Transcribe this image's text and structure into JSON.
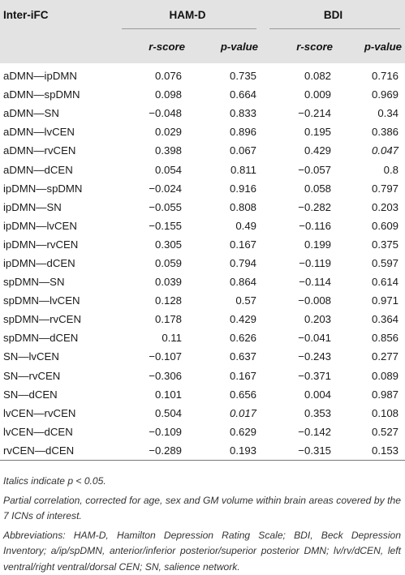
{
  "header": {
    "corner": "Inter-iFC",
    "groups": [
      "HAM-D",
      "BDI"
    ],
    "subheaders": [
      "r-score",
      "p-value",
      "r-score",
      "p-value"
    ]
  },
  "rows": [
    {
      "pair": "aDMN—ipDMN",
      "v": [
        "0.076",
        "0.735",
        "0.082",
        "0.716"
      ]
    },
    {
      "pair": "aDMN—spDMN",
      "v": [
        "0.098",
        "0.664",
        "0.009",
        "0.969"
      ]
    },
    {
      "pair": "aDMN—SN",
      "v": [
        "−0.048",
        "0.833",
        "−0.214",
        "0.34"
      ]
    },
    {
      "pair": "aDMN—lvCEN",
      "v": [
        "0.029",
        "0.896",
        "0.195",
        "0.386"
      ]
    },
    {
      "pair": "aDMN—rvCEN",
      "v": [
        "0.398",
        "0.067",
        "0.429",
        "0.047"
      ]
    },
    {
      "pair": "aDMN—dCEN",
      "v": [
        "0.054",
        "0.811",
        "−0.057",
        "0.8"
      ]
    },
    {
      "pair": "ipDMN—spDMN",
      "v": [
        "−0.024",
        "0.916",
        "0.058",
        "0.797"
      ]
    },
    {
      "pair": "ipDMN—SN",
      "v": [
        "−0.055",
        "0.808",
        "−0.282",
        "0.203"
      ]
    },
    {
      "pair": "ipDMN—lvCEN",
      "v": [
        "−0.155",
        "0.49",
        "−0.116",
        "0.609"
      ]
    },
    {
      "pair": "ipDMN—rvCEN",
      "v": [
        "0.305",
        "0.167",
        "0.199",
        "0.375"
      ]
    },
    {
      "pair": "ipDMN—dCEN",
      "v": [
        "0.059",
        "0.794",
        "−0.119",
        "0.597"
      ]
    },
    {
      "pair": "spDMN—SN",
      "v": [
        "0.039",
        "0.864",
        "−0.114",
        "0.614"
      ]
    },
    {
      "pair": "spDMN—lvCEN",
      "v": [
        "0.128",
        "0.57",
        "−0.008",
        "0.971"
      ]
    },
    {
      "pair": "spDMN—rvCEN",
      "v": [
        "0.178",
        "0.429",
        "0.203",
        "0.364"
      ]
    },
    {
      "pair": "spDMN—dCEN",
      "v": [
        "0.11",
        "0.626",
        "−0.041",
        "0.856"
      ]
    },
    {
      "pair": "SN—lvCEN",
      "v": [
        "−0.107",
        "0.637",
        "−0.243",
        "0.277"
      ]
    },
    {
      "pair": "SN—rvCEN",
      "v": [
        "−0.306",
        "0.167",
        "−0.371",
        "0.089"
      ]
    },
    {
      "pair": "SN—dCEN",
      "v": [
        "0.101",
        "0.656",
        "0.004",
        "0.987"
      ]
    },
    {
      "pair": "lvCEN—rvCEN",
      "v": [
        "0.504",
        "0.017",
        "0.353",
        "0.108"
      ]
    },
    {
      "pair": "lvCEN—dCEN",
      "v": [
        "−0.109",
        "0.629",
        "−0.142",
        "0.527"
      ]
    },
    {
      "pair": "rvCEN—dCEN",
      "v": [
        "−0.289",
        "0.193",
        "−0.315",
        "0.153"
      ]
    }
  ],
  "notes": {
    "italics_note": "Italics indicate p < 0.05.",
    "partial_correlation": "Partial correlation, corrected for age, sex and GM volume within brain areas covered by the 7 ICNs of interest.",
    "abbreviations": "Abbreviations: HAM-D, Hamilton Depression Rating Scale; BDI, Beck Depression Inventory; a/ip/spDMN, anterior/inferior posterior/superior posterior DMN; lv/rv/dCEN, left ventral/right ventral/dorsal CEN; SN, salience network."
  }
}
